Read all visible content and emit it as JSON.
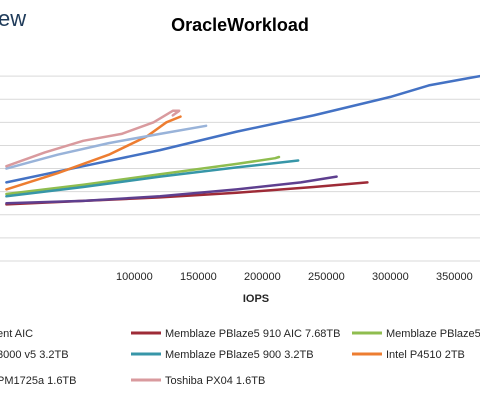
{
  "logo_text": "ew",
  "chart_data": {
    "type": "line",
    "title": "OracleWorkload",
    "xlabel": "IOPS",
    "ylabel": "",
    "xlim": [
      -5000,
      370000
    ],
    "ylim": [
      0,
      9
    ],
    "x_ticks": [
      100000,
      150000,
      200000,
      250000,
      300000,
      350000
    ],
    "x_tick_labels": [
      "100000",
      "150000",
      "200000",
      "250000",
      "300000",
      "350000"
    ],
    "y_gridlines": [
      1,
      2,
      3,
      4,
      5,
      6,
      7,
      8
    ],
    "grid": true,
    "legend_position": "bottom",
    "series": [
      {
        "name": "",
        "color": "#4472c4",
        "x": [
          0,
          60000,
          120000,
          180000,
          240000,
          300000,
          330000,
          360000,
          370000
        ],
        "y": [
          3.4,
          4.1,
          4.8,
          5.6,
          6.3,
          7.1,
          7.6,
          7.9,
          8.0
        ]
      },
      {
        "name": "Memblaze PBlaze5 910 AIC 7.68TB",
        "color": "#9e2b37",
        "x": [
          0,
          60000,
          120000,
          180000,
          240000,
          282000
        ],
        "y": [
          2.45,
          2.6,
          2.75,
          2.95,
          3.2,
          3.4
        ]
      },
      {
        "name": "",
        "color": "#8fbd4f",
        "x": [
          0,
          60000,
          120000,
          180000,
          210000,
          213000
        ],
        "y": [
          2.9,
          3.3,
          3.75,
          4.2,
          4.45,
          4.5
        ]
      },
      {
        "name": "",
        "color": "#5e3f8f",
        "x": [
          0,
          60000,
          120000,
          180000,
          230000,
          258000
        ],
        "y": [
          2.5,
          2.6,
          2.8,
          3.1,
          3.4,
          3.65
        ]
      },
      {
        "name": "Memblaze PBlaze5 900 3.2TB",
        "color": "#3796a8",
        "x": [
          0,
          60000,
          120000,
          180000,
          228000
        ],
        "y": [
          2.8,
          3.2,
          3.65,
          4.05,
          4.35
        ]
      },
      {
        "name": "Intel P4510 2TB",
        "color": "#ed7d31",
        "x": [
          0,
          40000,
          80000,
          110000,
          125000,
          136000
        ],
        "y": [
          3.1,
          3.8,
          4.6,
          5.4,
          6.0,
          6.25
        ]
      },
      {
        "name": "",
        "color": "#99b3d9",
        "x": [
          0,
          40000,
          80000,
          120000,
          156000
        ],
        "y": [
          4.0,
          4.6,
          5.1,
          5.5,
          5.85
        ]
      },
      {
        "name": "Toshiba PX04 1.6TB",
        "color": "#d99a9e",
        "x": [
          0,
          30000,
          60000,
          90000,
          115000,
          130000,
          135000,
          130000
        ],
        "y": [
          4.1,
          4.7,
          5.2,
          5.5,
          6.0,
          6.5,
          6.5,
          6.3
        ]
      }
    ],
    "legend": [
      {
        "label": "ent AIC",
        "color": "#4472c4"
      },
      {
        "label": "Memblaze PBlaze5 910 AIC 7.68TB",
        "color": "#9e2b37"
      },
      {
        "label": "Memblaze PBlaze5",
        "color": "#8fbd4f"
      },
      {
        "label": "3000 v5 3.2TB",
        "color": "#5e3f8f"
      },
      {
        "label": "Memblaze PBlaze5 900 3.2TB",
        "color": "#3796a8"
      },
      {
        "label": "Intel P4510 2TB",
        "color": "#ed7d31"
      },
      {
        "label": "PM1725a 1.6TB",
        "color": "#99b3d9"
      },
      {
        "label": "Toshiba PX04 1.6TB",
        "color": "#d99a9e"
      }
    ]
  }
}
